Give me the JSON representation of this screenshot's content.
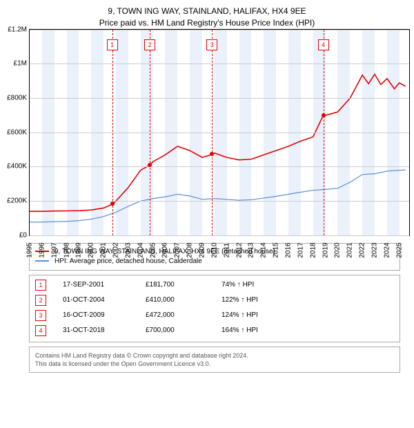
{
  "title_line1": "9, TOWN ING WAY, STAINLAND, HALIFAX, HX4 9EE",
  "title_line2": "Price paid vs. HM Land Registry's House Price Index (HPI)",
  "chart": {
    "type": "line",
    "background_color": "#ffffff",
    "grid_color": "#cccccc",
    "band_color": "#eaf1fb",
    "x_min": 1995,
    "x_max": 2025.8,
    "y_min": 0,
    "y_max": 1200000,
    "y_ticks": [
      {
        "v": 0,
        "label": "£0"
      },
      {
        "v": 200000,
        "label": "£200K"
      },
      {
        "v": 400000,
        "label": "£400K"
      },
      {
        "v": 600000,
        "label": "£600K"
      },
      {
        "v": 800000,
        "label": "£800K"
      },
      {
        "v": 1000000,
        "label": "£1M"
      },
      {
        "v": 1200000,
        "label": "£1.2M"
      }
    ],
    "x_ticks": [
      "1995",
      "1996",
      "1997",
      "1998",
      "1999",
      "2000",
      "2001",
      "2002",
      "2003",
      "2004",
      "2005",
      "2006",
      "2007",
      "2008",
      "2009",
      "2010",
      "2011",
      "2012",
      "2013",
      "2014",
      "2015",
      "2016",
      "2017",
      "2018",
      "2019",
      "2020",
      "2021",
      "2022",
      "2023",
      "2024",
      "2025"
    ],
    "series": [
      {
        "name": "price_paid",
        "color": "#e40000",
        "width": 1.6,
        "data": [
          [
            1995,
            140000
          ],
          [
            1996,
            140000
          ],
          [
            1997,
            142000
          ],
          [
            1998,
            143000
          ],
          [
            1999,
            144000
          ],
          [
            2000,
            148000
          ],
          [
            2001,
            160000
          ],
          [
            2001.7,
            181700
          ],
          [
            2002,
            200000
          ],
          [
            2003,
            280000
          ],
          [
            2004,
            380000
          ],
          [
            2004.75,
            410000
          ],
          [
            2005,
            430000
          ],
          [
            2006,
            470000
          ],
          [
            2007,
            520000
          ],
          [
            2008,
            495000
          ],
          [
            2009.0,
            455000
          ],
          [
            2009.8,
            472000
          ],
          [
            2010,
            480000
          ],
          [
            2011,
            455000
          ],
          [
            2012,
            440000
          ],
          [
            2013,
            445000
          ],
          [
            2014,
            470000
          ],
          [
            2015,
            495000
          ],
          [
            2016,
            520000
          ],
          [
            2017,
            550000
          ],
          [
            2018,
            575000
          ],
          [
            2018.83,
            700000
          ],
          [
            2019,
            700000
          ],
          [
            2020,
            720000
          ],
          [
            2021,
            800000
          ],
          [
            2022,
            935000
          ],
          [
            2022.5,
            885000
          ],
          [
            2023,
            940000
          ],
          [
            2023.5,
            880000
          ],
          [
            2024,
            915000
          ],
          [
            2024.6,
            855000
          ],
          [
            2025,
            890000
          ],
          [
            2025.5,
            870000
          ]
        ]
      },
      {
        "name": "hpi",
        "color": "#5a8fd6",
        "width": 1.2,
        "data": [
          [
            1995,
            78000
          ],
          [
            1996,
            78000
          ],
          [
            1997,
            80000
          ],
          [
            1998,
            82000
          ],
          [
            1999,
            86000
          ],
          [
            2000,
            95000
          ],
          [
            2001,
            110000
          ],
          [
            2002,
            135000
          ],
          [
            2003,
            170000
          ],
          [
            2004,
            200000
          ],
          [
            2005,
            215000
          ],
          [
            2006,
            225000
          ],
          [
            2007,
            240000
          ],
          [
            2008,
            230000
          ],
          [
            2009,
            210000
          ],
          [
            2010,
            215000
          ],
          [
            2011,
            210000
          ],
          [
            2012,
            205000
          ],
          [
            2013,
            208000
          ],
          [
            2014,
            218000
          ],
          [
            2015,
            228000
          ],
          [
            2016,
            240000
          ],
          [
            2017,
            252000
          ],
          [
            2018,
            263000
          ],
          [
            2019,
            268000
          ],
          [
            2020,
            275000
          ],
          [
            2021,
            310000
          ],
          [
            2022,
            355000
          ],
          [
            2023,
            360000
          ],
          [
            2024,
            375000
          ],
          [
            2025,
            380000
          ],
          [
            2025.5,
            382000
          ]
        ]
      }
    ],
    "sale_points": [
      {
        "x": 2001.7,
        "y": 181700
      },
      {
        "x": 2004.75,
        "y": 410000
      },
      {
        "x": 2009.8,
        "y": 472000
      },
      {
        "x": 2018.83,
        "y": 700000
      }
    ],
    "event_markers": [
      {
        "n": "1",
        "x": 2001.7
      },
      {
        "n": "2",
        "x": 2004.75
      },
      {
        "n": "3",
        "x": 2009.8
      },
      {
        "n": "4",
        "x": 2018.83
      }
    ],
    "vline_color": "#e40000"
  },
  "legend": {
    "items": [
      {
        "color": "#e40000",
        "label": "9, TOWN ING WAY, STAINLAND, HALIFAX, HX4 9EE (detached house)"
      },
      {
        "color": "#5a8fd6",
        "label": "HPI: Average price, detached house, Calderdale"
      }
    ]
  },
  "events": [
    {
      "n": "1",
      "date": "17-SEP-2001",
      "price": "£181,700",
      "diff": "74% ↑ HPI"
    },
    {
      "n": "2",
      "date": "01-OCT-2004",
      "price": "£410,000",
      "diff": "122% ↑ HPI"
    },
    {
      "n": "3",
      "date": "16-OCT-2009",
      "price": "£472,000",
      "diff": "124% ↑ HPI"
    },
    {
      "n": "4",
      "date": "31-OCT-2018",
      "price": "£700,000",
      "diff": "164% ↑ HPI"
    }
  ],
  "footer_line1": "Contains HM Land Registry data © Crown copyright and database right 2024.",
  "footer_line2": "This data is licensed under the Open Government Licence v3.0."
}
